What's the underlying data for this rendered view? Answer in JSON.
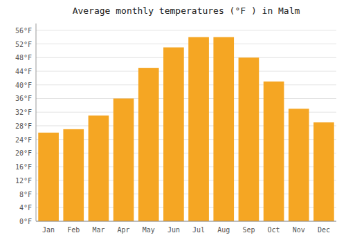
{
  "chart_data": {
    "type": "bar",
    "title": "Average monthly temperatures (°F ) in Malm",
    "categories": [
      "Jan",
      "Feb",
      "Mar",
      "Apr",
      "May",
      "Jun",
      "Jul",
      "Aug",
      "Sep",
      "Oct",
      "Nov",
      "Dec"
    ],
    "values": [
      26,
      27,
      31,
      36,
      45,
      51,
      54,
      54,
      48,
      41,
      33,
      29
    ],
    "color": "#F5A623",
    "ylim": [
      0,
      58
    ],
    "yticks": [
      {
        "value": 0,
        "label": "0°F"
      },
      {
        "value": 4,
        "label": "4°F"
      },
      {
        "value": 8,
        "label": "8°F"
      },
      {
        "value": 12,
        "label": "12°F"
      },
      {
        "value": 16,
        "label": "16°F"
      },
      {
        "value": 20,
        "label": "20°F"
      },
      {
        "value": 24,
        "label": "24°F"
      },
      {
        "value": 28,
        "label": "28°F"
      },
      {
        "value": 32,
        "label": "32°F"
      },
      {
        "value": 36,
        "label": "36°F"
      },
      {
        "value": 40,
        "label": "40°F"
      },
      {
        "value": 44,
        "label": "44°F"
      },
      {
        "value": 48,
        "label": "48°F"
      },
      {
        "value": 52,
        "label": "52°F"
      },
      {
        "value": 56,
        "label": "56°F"
      }
    ],
    "grid": true
  }
}
